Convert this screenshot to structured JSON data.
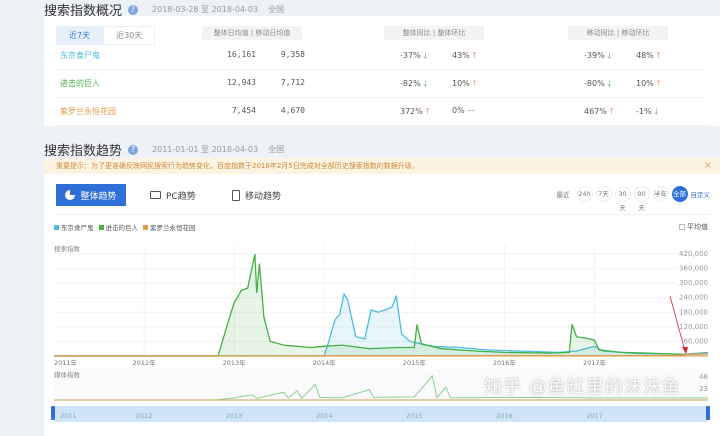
{
  "overview": {
    "title": "搜索指数概况",
    "date_range": "2018-03-28 至 2018-04-03",
    "region": "全国",
    "tabs": [
      {
        "label": "近7天",
        "active": true
      },
      {
        "label": "近30天",
        "active": false
      }
    ],
    "headers": {
      "daily": "整体日均值 | 移动日均值",
      "overall": "整体同比 | 整体环比",
      "mobile": "移动同比 | 移动环比"
    },
    "rows": [
      {
        "name": "东京食尸鬼",
        "color": "#4bbde0",
        "overall_avg": "16,161",
        "mobile_avg": "9,358",
        "overall_yoy": "-37%",
        "overall_yoy_dir": "down",
        "overall_mom": "43%",
        "overall_mom_dir": "up",
        "mobile_yoy": "-39%",
        "mobile_yoy_dir": "down",
        "mobile_mom": "48%",
        "mobile_mom_dir": "up"
      },
      {
        "name": "进击的巨人",
        "color": "#45b045",
        "overall_avg": "12,943",
        "mobile_avg": "7,712",
        "overall_yoy": "-82%",
        "overall_yoy_dir": "down",
        "overall_mom": "10%",
        "overall_mom_dir": "up",
        "mobile_yoy": "-80%",
        "mobile_yoy_dir": "down",
        "mobile_mom": "10%",
        "mobile_mom_dir": "up"
      },
      {
        "name": "紫罗兰永恒花园",
        "color": "#e09a4b",
        "overall_avg": "7,454",
        "mobile_avg": "4,670",
        "overall_yoy": "372%",
        "overall_yoy_dir": "up",
        "overall_mom": "0%",
        "overall_mom_dir": "flat",
        "mobile_yoy": "467%",
        "mobile_yoy_dir": "up",
        "mobile_mom": "-1%",
        "mobile_mom_dir": "down"
      }
    ]
  },
  "trend": {
    "title": "搜索指数趋势",
    "date_range": "2011-01-01 至 2018-04-03",
    "region": "全国",
    "notice": "重要提示：为了更准确反映网民搜索行为趋势变化，百度指数于2018年2月5日完成对全部历史搜索指数的数据升级。",
    "close": "×",
    "tabs": [
      {
        "label": "整体趋势",
        "active": true
      },
      {
        "label": "PC趋势"
      },
      {
        "label": "移动趋势"
      }
    ],
    "range_label": "最近",
    "ranges": [
      "24h",
      "7天",
      "30天",
      "90天",
      "半年",
      "全部"
    ],
    "range_active": "全部",
    "custom": "自定义",
    "avg_label": "平均值"
  },
  "chart_data": {
    "type": "area",
    "ylabel": "搜索指数",
    "accent": "#2f6fd8",
    "x_ticks": [
      "2011年",
      "2012年",
      "2013年",
      "2014年",
      "2015年",
      "2016年",
      "2017年"
    ],
    "y_ticks": [
      "420,000",
      "360,000",
      "300,000",
      "240,000",
      "180,000",
      "120,000",
      "60,000"
    ],
    "ylim": [
      0,
      420000
    ],
    "xlim": [
      2011,
      2018.26
    ],
    "series": [
      {
        "name": "东京食尸鬼",
        "color": "#4bbde0",
        "points": [
          [
            2011,
            0
          ],
          [
            2014.0,
            0
          ],
          [
            2014.05,
            60000
          ],
          [
            2014.12,
            150000
          ],
          [
            2014.17,
            170000
          ],
          [
            2014.22,
            255000
          ],
          [
            2014.26,
            230000
          ],
          [
            2014.35,
            80000
          ],
          [
            2014.45,
            70000
          ],
          [
            2014.52,
            190000
          ],
          [
            2014.6,
            180000
          ],
          [
            2014.75,
            200000
          ],
          [
            2014.8,
            245000
          ],
          [
            2014.86,
            90000
          ],
          [
            2014.95,
            60000
          ],
          [
            2015.2,
            40000
          ],
          [
            2015.5,
            35000
          ],
          [
            2015.8,
            25000
          ],
          [
            2016.2,
            20000
          ],
          [
            2016.6,
            15000
          ],
          [
            2016.8,
            20000
          ],
          [
            2017.0,
            40000
          ],
          [
            2017.1,
            20000
          ],
          [
            2017.5,
            10000
          ],
          [
            2018.0,
            8000
          ],
          [
            2018.26,
            15000
          ]
        ]
      },
      {
        "name": "进击的巨人",
        "color": "#45b045",
        "points": [
          [
            2011,
            0
          ],
          [
            2012.82,
            0
          ],
          [
            2012.86,
            50000
          ],
          [
            2012.95,
            160000
          ],
          [
            2013.0,
            220000
          ],
          [
            2013.08,
            270000
          ],
          [
            2013.15,
            280000
          ],
          [
            2013.23,
            420000
          ],
          [
            2013.25,
            260000
          ],
          [
            2013.28,
            380000
          ],
          [
            2013.33,
            160000
          ],
          [
            2013.4,
            60000
          ],
          [
            2013.55,
            45000
          ],
          [
            2013.7,
            40000
          ],
          [
            2013.85,
            35000
          ],
          [
            2014.0,
            40000
          ],
          [
            2014.2,
            45000
          ],
          [
            2014.5,
            30000
          ],
          [
            2014.8,
            35000
          ],
          [
            2015.0,
            35000
          ],
          [
            2015.03,
            130000
          ],
          [
            2015.08,
            50000
          ],
          [
            2015.3,
            30000
          ],
          [
            2015.7,
            20000
          ],
          [
            2016.0,
            15000
          ],
          [
            2016.5,
            12000
          ],
          [
            2016.72,
            15000
          ],
          [
            2016.75,
            130000
          ],
          [
            2016.8,
            80000
          ],
          [
            2016.95,
            70000
          ],
          [
            2017.0,
            65000
          ],
          [
            2017.05,
            25000
          ],
          [
            2017.3,
            15000
          ],
          [
            2017.6,
            12000
          ],
          [
            2018.0,
            6000
          ],
          [
            2018.26,
            10000
          ]
        ]
      },
      {
        "name": "紫罗兰永恒花园",
        "color": "#e09a4b",
        "points": [
          [
            2011,
            1000
          ],
          [
            2017.9,
            1500
          ],
          [
            2018.05,
            8000
          ],
          [
            2018.26,
            9000
          ]
        ]
      }
    ],
    "media": {
      "label": "媒体指数",
      "y_ticks": [
        "46",
        "23"
      ],
      "ylim": [
        0,
        46
      ],
      "points": [
        [
          2011,
          0
        ],
        [
          2012.8,
          0
        ],
        [
          2013.0,
          4
        ],
        [
          2013.2,
          10
        ],
        [
          2013.25,
          3
        ],
        [
          2013.55,
          15
        ],
        [
          2013.6,
          4
        ],
        [
          2013.7,
          18
        ],
        [
          2013.75,
          3
        ],
        [
          2013.9,
          30
        ],
        [
          2013.95,
          5
        ],
        [
          2014.2,
          4
        ],
        [
          2014.5,
          20
        ],
        [
          2014.55,
          5
        ],
        [
          2015.0,
          6
        ],
        [
          2015.2,
          46
        ],
        [
          2015.25,
          5
        ],
        [
          2015.35,
          25
        ],
        [
          2015.4,
          4
        ],
        [
          2016.0,
          5
        ],
        [
          2017.0,
          4
        ],
        [
          2018.26,
          4
        ]
      ]
    },
    "navigator_ticks": [
      "2011",
      "2012",
      "2013",
      "2014",
      "2015",
      "2016",
      "2017"
    ]
  },
  "watermark": "知乎 @鱼缸里的沫沫鱼"
}
